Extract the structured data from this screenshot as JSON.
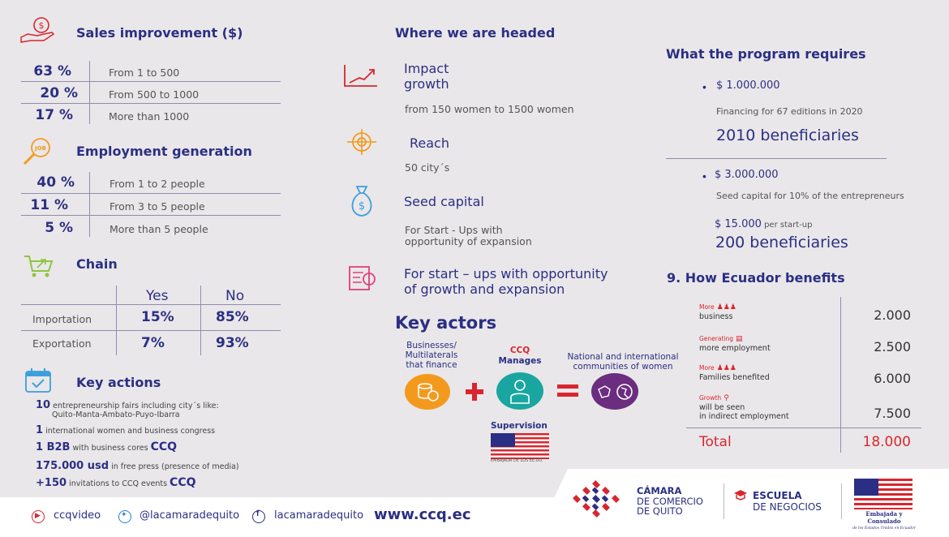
{
  "sales": {
    "title": "Sales improvement ($)",
    "rows": [
      {
        "pct": "63 %",
        "range": "From 1 to 500"
      },
      {
        "pct": "20 %",
        "range": "From 500 to 1000"
      },
      {
        "pct": "17 %",
        "range": "More than 1000"
      }
    ]
  },
  "employment": {
    "title": "Employment generation",
    "rows": [
      {
        "pct": "40 %",
        "range": "From 1 to 2 people"
      },
      {
        "pct": "11 %",
        "range": "From 3 to 5 people"
      },
      {
        "pct": "5 %",
        "range": "More than 5 people"
      }
    ]
  },
  "chain": {
    "title": "Chain",
    "yes": "Yes",
    "no": "No",
    "rows": [
      {
        "label": "Importation",
        "yes": "15%",
        "no": "85%"
      },
      {
        "label": "Exportation",
        "yes": "7%",
        "no": "93%"
      }
    ]
  },
  "key_actions": {
    "title": "Key actions",
    "items": [
      {
        "bold": "10",
        "text": " entrepreneurship fairs including city´s like:",
        "text2": "Quito-Manta-Ambato-Puyo-Ibarra"
      },
      {
        "bold": "1",
        "text": " international women and business congress"
      },
      {
        "bold": "1 B2B",
        "text": "  with business cores ",
        "ccq": "CCQ"
      },
      {
        "bold": "175.000 usd",
        "text": " in free press (presence of media)"
      },
      {
        "bold": "+150",
        "text": " invitations to CCQ events ",
        "ccq": "CCQ"
      }
    ]
  },
  "headed": {
    "title": "Where we are headed",
    "items": [
      {
        "title": "Impact",
        "title2": "growth",
        "sub": "from 150 women to 1500 women"
      },
      {
        "title": "Reach",
        "sub": "50 city´s"
      },
      {
        "title": "Seed capital",
        "sub": "For Start - Ups with",
        "sub2": "opportunity of  expansion"
      },
      {
        "title": "For start – ups with  opportunity",
        "title2": "of growth and expansion"
      }
    ]
  },
  "actors": {
    "title": "Key actors",
    "finance": [
      "Businesses/",
      "Multilaterals",
      "that finance"
    ],
    "ccq": "CCQ",
    "manages": "Manages",
    "national": [
      "National and international",
      "communities of women"
    ],
    "supervision": "Supervision",
    "embassy_small": "EMBAJADA DE LOS EE.UU.",
    "colors": {
      "orange": "#f39a1e",
      "teal": "#1aa6a0",
      "purple": "#6b2d7f",
      "red": "#d8262e"
    }
  },
  "requires": {
    "title": "What the program requires",
    "block1": {
      "amount": "$ 1.000.000",
      "sub": "Financing for 67 editions in 2020",
      "big": "2010 beneficiaries"
    },
    "block2": {
      "amount": "$ 3.000.000",
      "sub": "Seed capital for 10% of the entrepreneurs",
      "amount2": "$ 15.000",
      "per": " per start-up",
      "big": "200 beneficiaries"
    }
  },
  "ecuador": {
    "title": "9. How Ecuador benefits",
    "rows": [
      {
        "red": "More",
        "label": "business",
        "value": "2.000"
      },
      {
        "red": "Generating",
        "label": "more employment",
        "value": "2.500"
      },
      {
        "red": "More",
        "label": "Families benefited",
        "value": "6.000"
      },
      {
        "red": "Growth",
        "label": "will be seen",
        "label2": "in indirect employment",
        "value": "7.500"
      }
    ],
    "total_label": "Total",
    "total_value": "18.000"
  },
  "footer": {
    "youtube": "ccqvideo",
    "twitter": "@lacamaradequito",
    "facebook": "lacamaradequito",
    "site": "www.ccq.ec",
    "camara": [
      "CÁMARA",
      "DE COMERCIO",
      "DE QUITO"
    ],
    "escuela": [
      "ESCUELA",
      "DE NEGOCIOS"
    ],
    "embajada": [
      "Embajada y Consulado",
      "de los Estados Unidos en Ecuador"
    ]
  }
}
